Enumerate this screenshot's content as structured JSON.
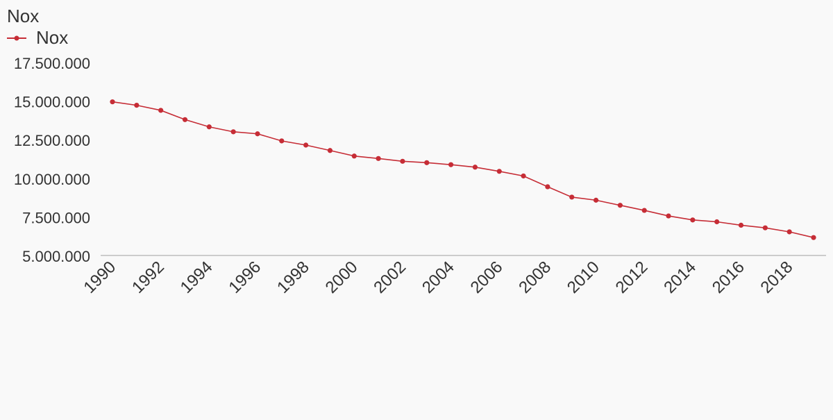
{
  "chart_data": {
    "type": "line",
    "title": "Nox",
    "xlabel": "",
    "ylabel": "",
    "x": [
      1990,
      1991,
      1992,
      1993,
      1994,
      1995,
      1996,
      1997,
      1998,
      1999,
      2000,
      2001,
      2002,
      2003,
      2004,
      2005,
      2006,
      2007,
      2008,
      2009,
      2010,
      2011,
      2012,
      2013,
      2014,
      2015,
      2016,
      2017,
      2018,
      2019
    ],
    "x_tick_labels": [
      "1990",
      "1992",
      "1994",
      "1996",
      "1998",
      "2000",
      "2002",
      "2004",
      "2006",
      "2008",
      "2010",
      "2012",
      "2014",
      "2016",
      "2018"
    ],
    "y_tick_values": [
      5000000,
      7500000,
      10000000,
      12500000,
      15000000,
      17500000
    ],
    "y_tick_labels": [
      "5.000.000",
      "7.500.000",
      "10.000.000",
      "12.500.000",
      "15.000.000",
      "17.500.000"
    ],
    "ylim": [
      5000000,
      17500000
    ],
    "grid": false,
    "legend_position": "top-left",
    "series": [
      {
        "name": "Nox",
        "color": "#c62d36",
        "values": [
          14950000,
          14730000,
          14400000,
          13800000,
          13330000,
          13010000,
          12880000,
          12420000,
          12150000,
          11800000,
          11440000,
          11280000,
          11100000,
          11010000,
          10880000,
          10720000,
          10450000,
          10150000,
          9450000,
          8780000,
          8580000,
          8250000,
          7920000,
          7560000,
          7300000,
          7180000,
          6960000,
          6790000,
          6530000,
          6160000
        ]
      }
    ]
  }
}
